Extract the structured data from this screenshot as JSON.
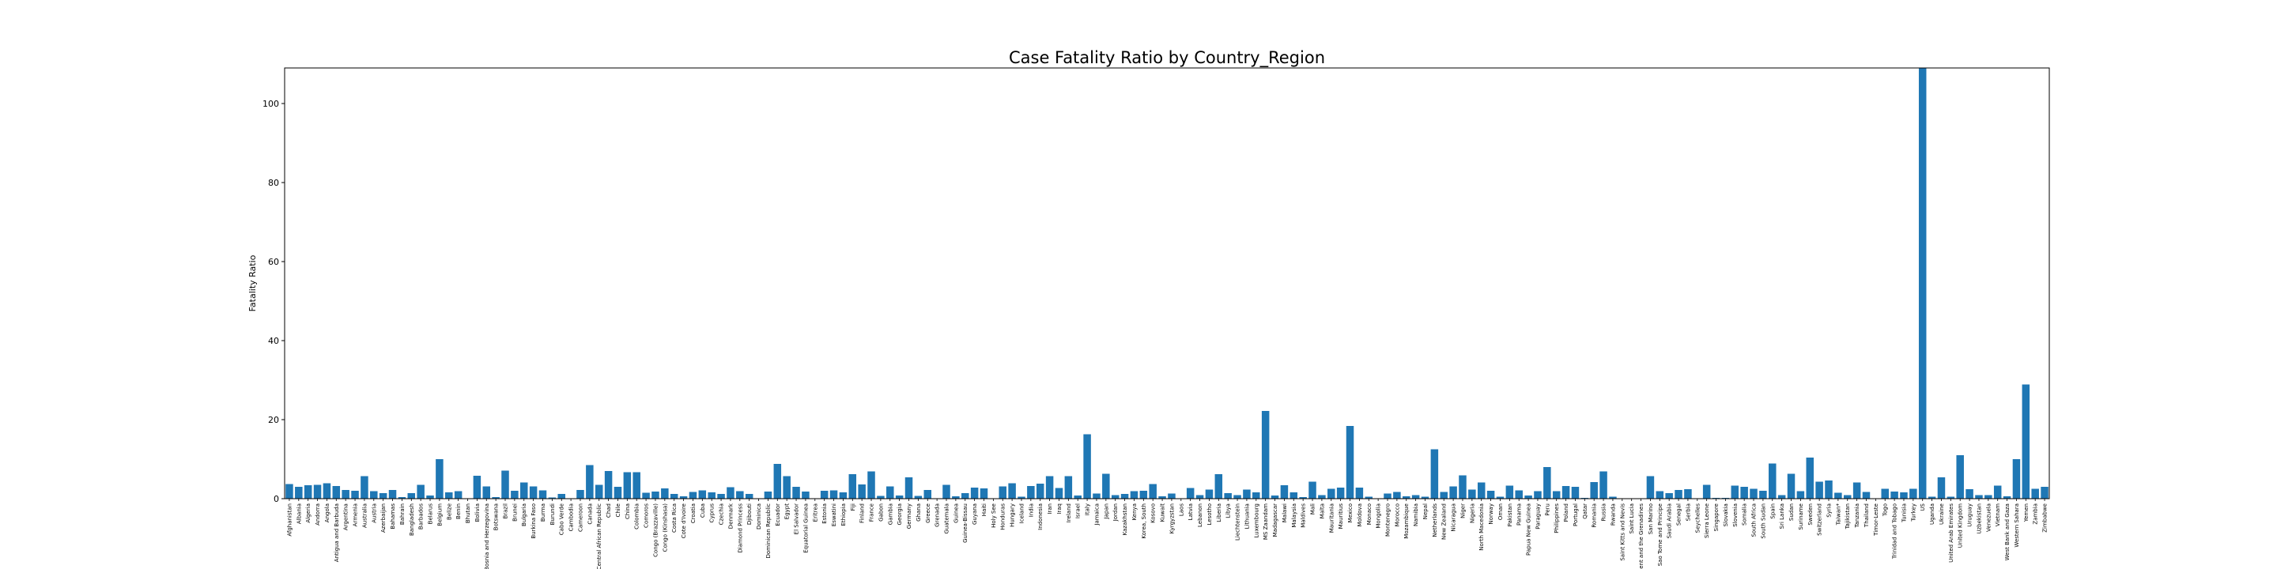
{
  "chart_data": {
    "type": "bar",
    "title": "Case Fatality Ratio by Country_Region",
    "xlabel": "",
    "ylabel": "Fatality Ratio",
    "ylim": [
      0,
      109
    ],
    "yticks": [
      0,
      20,
      40,
      60,
      80,
      100
    ],
    "grid": false,
    "colors": {
      "bar": "#1f77b4",
      "axis": "#000000",
      "background": "#ffffff"
    },
    "categories": [
      "Afghanistan",
      "Albania",
      "Algeria",
      "Andorra",
      "Angola",
      "Antigua and Barbuda",
      "Argentina",
      "Armenia",
      "Australia",
      "Austria",
      "Azerbaijan",
      "Bahamas",
      "Bahrain",
      "Bangladesh",
      "Barbados",
      "Belarus",
      "Belgium",
      "Belize",
      "Benin",
      "Bhutan",
      "Bolivia",
      "Bosnia and Herzegovina",
      "Botswana",
      "Brazil",
      "Brunei",
      "Bulgaria",
      "Burkina Faso",
      "Burma",
      "Burundi",
      "Cabo Verde",
      "Cambodia",
      "Cameroon",
      "Canada",
      "Central African Republic",
      "Chad",
      "Chile",
      "China",
      "Colombia",
      "Comoros",
      "Congo (Brazzaville)",
      "Congo (Kinshasa)",
      "Costa Rica",
      "Cote d'Ivoire",
      "Croatia",
      "Cuba",
      "Cyprus",
      "Czechia",
      "Denmark",
      "Diamond Princess",
      "Djibouti",
      "Dominica",
      "Dominican Republic",
      "Ecuador",
      "Egypt",
      "El Salvador",
      "Equatorial Guinea",
      "Eritrea",
      "Estonia",
      "Eswatini",
      "Ethiopia",
      "Fiji",
      "Finland",
      "France",
      "Gabon",
      "Gambia",
      "Georgia",
      "Germany",
      "Ghana",
      "Greece",
      "Grenada",
      "Guatemala",
      "Guinea",
      "Guinea-Bissau",
      "Guyana",
      "Haiti",
      "Holy See",
      "Honduras",
      "Hungary",
      "Iceland",
      "India",
      "Indonesia",
      "Iran",
      "Iraq",
      "Ireland",
      "Israel",
      "Italy",
      "Jamaica",
      "Japan",
      "Jordan",
      "Kazakhstan",
      "Kenya",
      "Korea, South",
      "Kosovo",
      "Kuwait",
      "Kyrgyzstan",
      "Laos",
      "Latvia",
      "Lebanon",
      "Lesotho",
      "Liberia",
      "Libya",
      "Liechtenstein",
      "Lithuania",
      "Luxembourg",
      "MS Zaandam",
      "Madagascar",
      "Malawi",
      "Malaysia",
      "Maldives",
      "Mali",
      "Malta",
      "Mauritania",
      "Mauritius",
      "Mexico",
      "Moldova",
      "Monaco",
      "Mongolia",
      "Montenegro",
      "Morocco",
      "Mozambique",
      "Namibia",
      "Nepal",
      "Netherlands",
      "New Zealand",
      "Nicaragua",
      "Niger",
      "Nigeria",
      "North Macedonia",
      "Norway",
      "Oman",
      "Pakistan",
      "Panama",
      "Papua New Guinea",
      "Paraguay",
      "Peru",
      "Philippines",
      "Poland",
      "Portugal",
      "Qatar",
      "Romania",
      "Russia",
      "Rwanda",
      "Saint Kitts and Nevis",
      "Saint Lucia",
      "Saint Vincent and the Grenadines",
      "San Marino",
      "Sao Tome and Principe",
      "Saudi Arabia",
      "Senegal",
      "Serbia",
      "Seychelles",
      "Sierra Leone",
      "Singapore",
      "Slovakia",
      "Slovenia",
      "Somalia",
      "South Africa",
      "South Sudan",
      "Spain",
      "Sri Lanka",
      "Sudan",
      "Suriname",
      "Sweden",
      "Switzerland",
      "Syria",
      "Taiwan*",
      "Tajikistan",
      "Tanzania",
      "Thailand",
      "Timor-Leste",
      "Togo",
      "Trinidad and Tobago",
      "Tunisia",
      "Turkey",
      "US",
      "Uganda",
      "Ukraine",
      "United Arab Emirates",
      "United Kingdom",
      "Uruguay",
      "Uzbekistan",
      "Venezuela",
      "Vietnam",
      "West Bank and Gaza",
      "Western Sahara",
      "Yemen",
      "Zambia",
      "Zimbabwe"
    ],
    "values": [
      3.7,
      3.0,
      3.4,
      3.5,
      3.9,
      3.2,
      2.2,
      2.0,
      5.7,
      1.9,
      1.4,
      2.2,
      0.4,
      1.4,
      3.5,
      0.8,
      10.0,
      1.6,
      1.9,
      0.0,
      5.8,
      3.1,
      0.4,
      7.1,
      2.0,
      4.1,
      3.1,
      2.1,
      0.3,
      1.2,
      0.0,
      2.2,
      8.5,
      3.5,
      7.0,
      3.0,
      6.7,
      6.7,
      1.5,
      1.8,
      2.6,
      1.2,
      0.6,
      1.7,
      2.1,
      1.6,
      1.2,
      2.9,
      1.9,
      1.2,
      0.0,
      1.8,
      8.8,
      5.7,
      3.0,
      1.8,
      0.1,
      2.0,
      2.1,
      1.6,
      6.2,
      3.6,
      6.9,
      0.7,
      3.1,
      0.8,
      5.4,
      0.7,
      2.2,
      0.0,
      3.5,
      0.6,
      1.4,
      2.8,
      2.6,
      0.0,
      3.1,
      3.9,
      0.5,
      3.2,
      3.8,
      5.7,
      2.7,
      5.7,
      0.8,
      16.3,
      1.3,
      6.3,
      0.9,
      1.2,
      1.9,
      2.0,
      3.7,
      0.6,
      1.3,
      0.0,
      2.7,
      0.9,
      2.3,
      6.2,
      1.4,
      0.9,
      2.3,
      1.6,
      22.2,
      0.8,
      3.4,
      1.6,
      0.4,
      4.3,
      0.9,
      2.5,
      2.8,
      18.4,
      2.8,
      0.5,
      0.0,
      1.3,
      1.7,
      0.6,
      0.9,
      0.5,
      12.5,
      1.7,
      3.1,
      5.9,
      2.3,
      4.1,
      2.0,
      0.5,
      3.3,
      2.1,
      0.8,
      1.9,
      8.0,
      1.9,
      3.2,
      3.0,
      0.2,
      4.2,
      6.9,
      0.5,
      0.0,
      0.0,
      0.0,
      5.7,
      1.9,
      1.4,
      2.2,
      2.4,
      0.0,
      3.5,
      0.2,
      0.2,
      3.3,
      3.0,
      2.5,
      2.0,
      8.9,
      0.9,
      6.3,
      1.9,
      10.4,
      4.3,
      4.6,
      1.5,
      0.9,
      4.1,
      1.7,
      0.0,
      2.5,
      1.8,
      1.6,
      2.5,
      109.0,
      0.5,
      5.4,
      0.5,
      11.0,
      2.4,
      0.9,
      0.9,
      3.3,
      0.6,
      10.0,
      28.9,
      2.5,
      3.0
    ]
  }
}
